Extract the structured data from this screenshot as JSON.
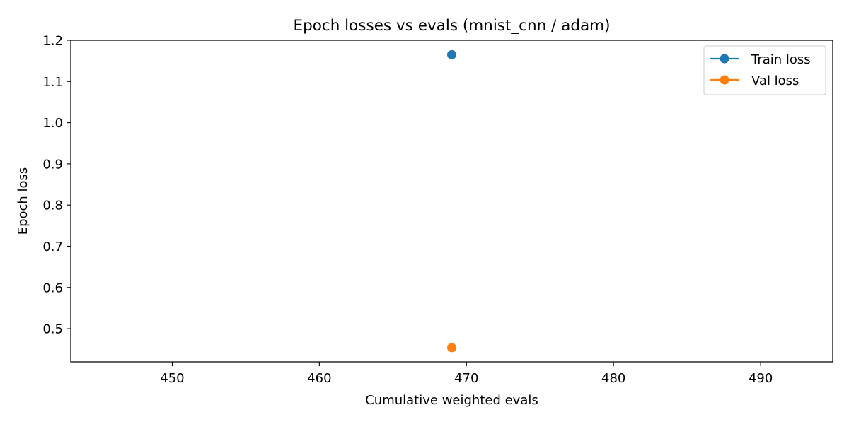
{
  "chart_data": {
    "type": "scatter",
    "title": "Epoch losses vs evals (mnist_cnn / adam)",
    "xlabel": "Cumulative weighted evals",
    "ylabel": "Epoch loss",
    "xlim": [
      443.1,
      494.9
    ],
    "ylim": [
      0.4195,
      1.2
    ],
    "xticks": [
      450,
      460,
      470,
      480,
      490
    ],
    "yticks": [
      0.5,
      0.6,
      0.7,
      0.8,
      0.9,
      1.0,
      1.1,
      1.2
    ],
    "grid": false,
    "legend_position": "top-right",
    "series": [
      {
        "name": "Train loss",
        "color": "#1f77b4",
        "marker": "circle",
        "x": [
          469
        ],
        "y": [
          1.165
        ]
      },
      {
        "name": "Val loss",
        "color": "#ff7f0e",
        "marker": "circle",
        "x": [
          469
        ],
        "y": [
          0.454
        ]
      }
    ]
  }
}
